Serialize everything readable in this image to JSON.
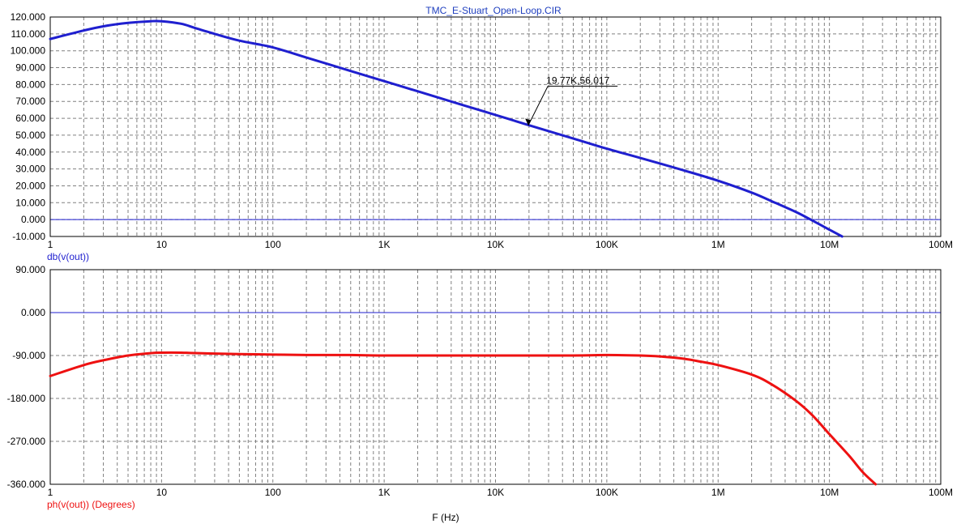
{
  "title": "TMC_E-Stuart_Open-Loop.CIR",
  "xlabel": "F (Hz)",
  "colors": {
    "magnitude": "#1f1fcf",
    "phase": "#ee1111",
    "zero_line": "#1f1fcf",
    "grid": "#808080",
    "title": "#1f3fbf"
  },
  "chart_data": [
    {
      "type": "line",
      "ylabel": "db(v(out))",
      "x_scale": "log",
      "xlim": [
        1,
        100000000
      ],
      "ylim": [
        -10,
        120
      ],
      "x_tick_labels": [
        "1",
        "10",
        "100",
        "1K",
        "10K",
        "100K",
        "1M",
        "10M",
        "100M"
      ],
      "y_tick_labels": [
        "120.000",
        "110.000",
        "100.000",
        "90.000",
        "80.000",
        "70.000",
        "60.000",
        "50.000",
        "40.000",
        "30.000",
        "20.000",
        "10.000",
        "0.000",
        "-10.000"
      ],
      "grid": true,
      "series": [
        {
          "name": "db(v(out))",
          "x": [
            1,
            2,
            3,
            5,
            8,
            10,
            15,
            20,
            30,
            50,
            100,
            200,
            500,
            1000,
            2000,
            5000,
            10000,
            19770,
            50000,
            100000,
            200000,
            500000,
            1000000,
            2000000,
            3000000,
            5000000,
            7000000,
            10000000,
            13000000
          ],
          "y": [
            107.0,
            112.0,
            114.5,
            116.5,
            117.5,
            117.5,
            116.0,
            113.5,
            110.0,
            106.0,
            102.0,
            96.0,
            88.0,
            82.0,
            76.0,
            68.0,
            62.0,
            56.0,
            48.0,
            42.0,
            36.5,
            29.0,
            23.0,
            16.0,
            11.0,
            4.5,
            -0.5,
            -6.0,
            -10.0
          ]
        }
      ],
      "annotations": [
        {
          "text": "19.77K,56.017",
          "x": 19770,
          "y": 56.017
        }
      ]
    },
    {
      "type": "line",
      "ylabel": "ph(v(out)) (Degrees)",
      "x_scale": "log",
      "xlim": [
        1,
        100000000
      ],
      "ylim": [
        -360,
        90
      ],
      "x_tick_labels": [
        "1",
        "10",
        "100",
        "1K",
        "10K",
        "100K",
        "1M",
        "10M",
        "100M"
      ],
      "y_tick_labels": [
        "90.000",
        "0.000",
        "-90.000",
        "-180.000",
        "-270.000",
        "-360.000"
      ],
      "grid": true,
      "series": [
        {
          "name": "ph(v(out)) (Degrees)",
          "x": [
            1,
            2,
            3,
            5,
            8,
            10,
            15,
            20,
            50,
            100,
            200,
            500,
            1000,
            10000,
            50000,
            100000,
            200000,
            300000,
            500000,
            700000,
            1000000,
            2000000,
            3000000,
            5000000,
            7000000,
            10000000,
            15000000,
            20000000,
            26000000
          ],
          "y": [
            -133,
            -110,
            -100,
            -90,
            -85,
            -84,
            -84,
            -85,
            -87,
            -88,
            -89,
            -89,
            -90,
            -90,
            -90,
            -89,
            -90,
            -92,
            -97,
            -103,
            -110,
            -130,
            -150,
            -185,
            -215,
            -255,
            -300,
            -335,
            -362
          ]
        }
      ]
    }
  ]
}
